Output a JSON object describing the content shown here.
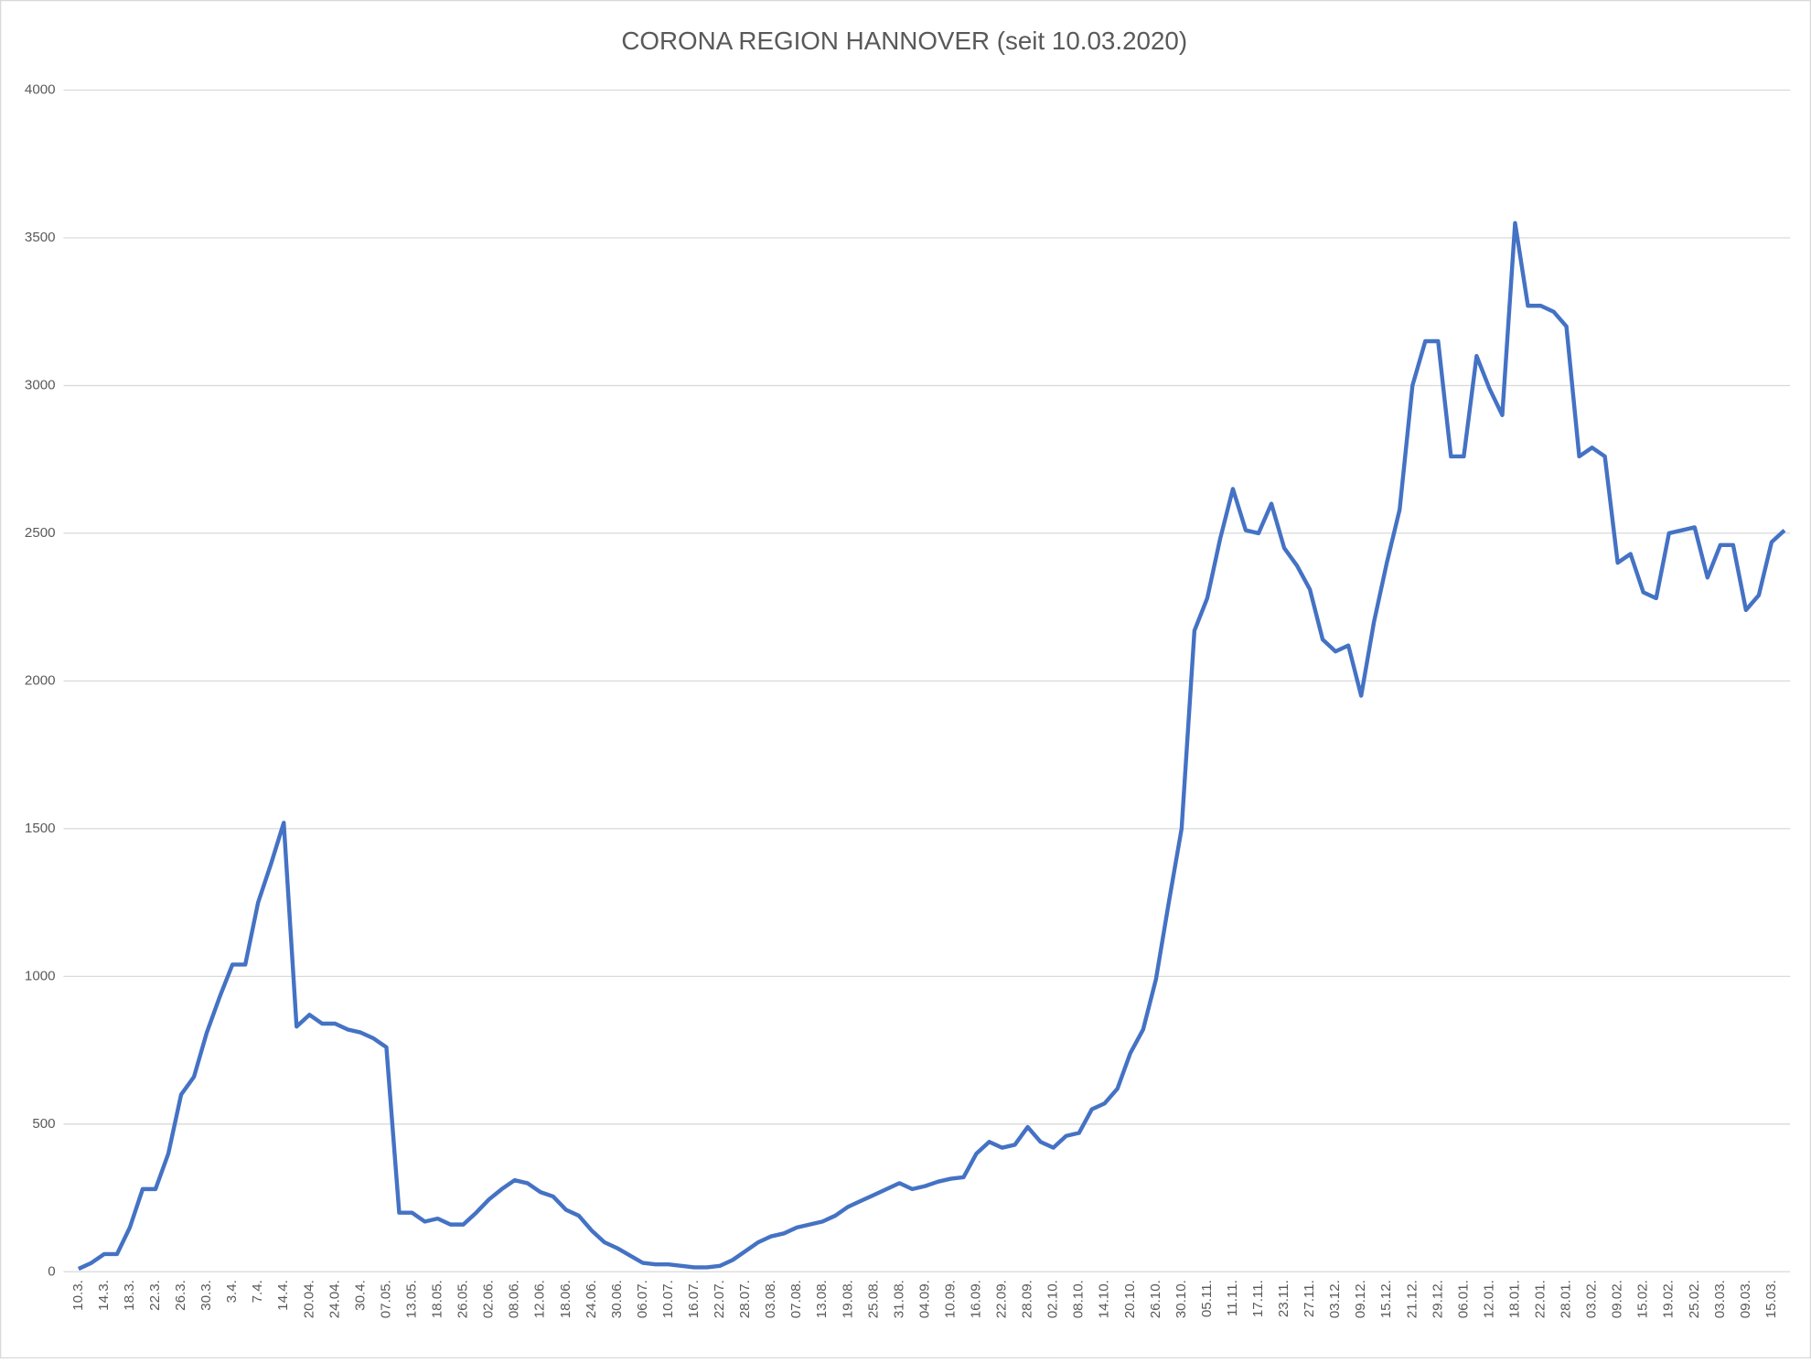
{
  "chart_data": {
    "type": "line",
    "title": "CORONA REGION HANNOVER (seit 10.03.2020)",
    "categories": [
      "10.3.",
      null,
      "14.3.",
      null,
      "18.3.",
      null,
      "22.3.",
      null,
      "26.3.",
      null,
      "30.3.",
      null,
      "3.4.",
      null,
      "7.4.",
      null,
      "14.4.",
      null,
      "20.04.",
      null,
      "24.04.",
      null,
      "30.4.",
      null,
      "07.05.",
      null,
      "13.05.",
      null,
      "18.05.",
      null,
      "26.05.",
      null,
      "02.06.",
      null,
      "08.06.",
      null,
      "12.06.",
      null,
      "18.06.",
      null,
      "24.06.",
      null,
      "30.06.",
      null,
      "06.07.",
      null,
      "10.07.",
      null,
      "16.07.",
      null,
      "22.07.",
      null,
      "28.07.",
      null,
      "03.08.",
      null,
      "07.08.",
      null,
      "13.08.",
      null,
      "19.08.",
      null,
      "25.08.",
      null,
      "31.08.",
      null,
      "04.09.",
      null,
      "10.09.",
      null,
      "16.09.",
      null,
      "22.09.",
      null,
      "28.09.",
      null,
      "02.10.",
      null,
      "08.10.",
      null,
      "14.10.",
      null,
      "20.10.",
      null,
      "26.10.",
      null,
      "30.10.",
      null,
      "05.11.",
      null,
      "11.11.",
      null,
      "17.11.",
      null,
      "23.11.",
      null,
      "27.11.",
      null,
      "03.12.",
      null,
      "09.12.",
      null,
      "15.12.",
      null,
      "21.12.",
      null,
      "29.12.",
      null,
      "06.01.",
      null,
      "12.01.",
      null,
      "18.01.",
      null,
      "22.01.",
      null,
      "28.01.",
      null,
      "03.02.",
      null,
      "09.02.",
      null,
      "15.02.",
      null,
      "19.02.",
      null,
      "25.02.",
      null,
      "03.03.",
      null,
      "09.03.",
      null,
      "15.03.",
      null
    ],
    "values": [
      10,
      30,
      60,
      60,
      150,
      280,
      280,
      400,
      600,
      660,
      810,
      930,
      1040,
      1040,
      1250,
      1380,
      1520,
      830,
      870,
      840,
      840,
      820,
      810,
      790,
      760,
      200,
      200,
      170,
      180,
      160,
      160,
      200,
      245,
      280,
      310,
      300,
      270,
      255,
      210,
      190,
      140,
      100,
      80,
      55,
      30,
      25,
      25,
      20,
      15,
      15,
      20,
      40,
      70,
      100,
      120,
      130,
      150,
      160,
      170,
      190,
      220,
      240,
      260,
      280,
      300,
      280,
      290,
      305,
      315,
      320,
      400,
      440,
      420,
      430,
      490,
      440,
      420,
      460,
      470,
      550,
      570,
      620,
      740,
      820,
      990,
      1250,
      1500,
      2170,
      2280,
      2480,
      2650,
      2510,
      2500,
      2600,
      2450,
      2390,
      2310,
      2140,
      2100,
      2120,
      1950,
      2200,
      2400,
      2580,
      3000,
      3150,
      3150,
      2760,
      2760,
      3100,
      2990,
      2900,
      3550,
      3270,
      3270,
      3250,
      3200,
      2760,
      2790,
      2760,
      2400,
      2430,
      2300,
      2280,
      2500,
      2510,
      2520,
      2350,
      2460,
      2460,
      2240,
      2290,
      2470,
      2510
    ],
    "color": "#4472c4",
    "ylim": [
      0,
      4000
    ],
    "yticks": [
      0,
      500,
      1000,
      1500,
      2000,
      2500,
      3000,
      3500,
      4000
    ],
    "grid": true
  }
}
